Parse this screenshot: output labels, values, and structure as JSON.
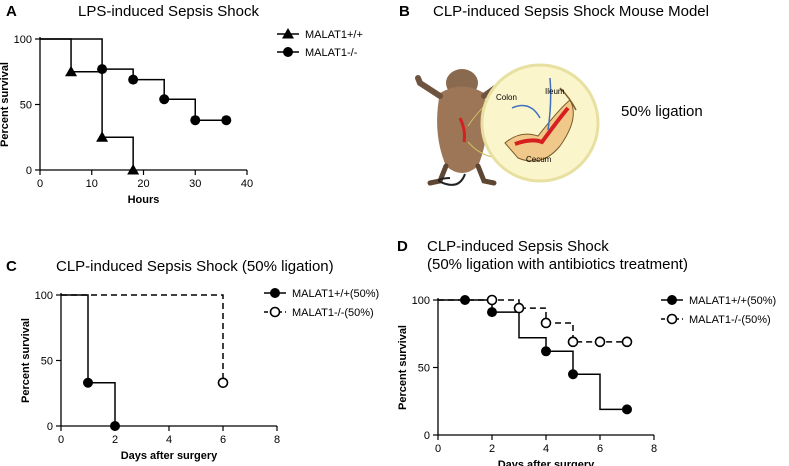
{
  "panels": {
    "A": {
      "letter": "A",
      "title": "LPS-induced Sepsis Shock"
    },
    "B": {
      "letter": "B",
      "title": "CLP-induced Sepsis Shock Mouse Model",
      "ligation": "50% ligation",
      "anatomy": {
        "ileum": "Ileum",
        "colon": "Colon",
        "cecum": "Cecum"
      }
    },
    "C": {
      "letter": "C",
      "title": "CLP-induced Sepsis Shock (50% ligation)"
    },
    "D": {
      "letter": "D",
      "title_line1": "CLP-induced Sepsis Shock",
      "title_line2": "(50% ligation with antibiotics treatment)"
    }
  },
  "chart_data": [
    {
      "id": "A",
      "type": "line",
      "title": "LPS-induced Sepsis Shock",
      "xlabel": "Hours",
      "ylabel": "Percent survival",
      "xlim": [
        0,
        40
      ],
      "ylim": [
        0,
        100
      ],
      "xticks": [
        0,
        10,
        20,
        30,
        40
      ],
      "yticks": [
        0,
        50,
        100
      ],
      "legend_position": "top-right",
      "series": [
        {
          "name": "MALAT1+/+",
          "marker": "triangle",
          "dashed": false,
          "steps": [
            [
              0,
              100
            ],
            [
              6,
              75
            ],
            [
              12,
              25
            ],
            [
              18,
              0
            ]
          ],
          "markers": [
            [
              6,
              75
            ],
            [
              12,
              25
            ],
            [
              18,
              0
            ]
          ]
        },
        {
          "name": "MALAT1-/-",
          "marker": "circle",
          "dashed": false,
          "steps": [
            [
              0,
              100
            ],
            [
              12,
              77
            ],
            [
              18,
              69
            ],
            [
              24,
              54
            ],
            [
              30,
              38
            ],
            [
              36,
              38
            ]
          ],
          "markers": [
            [
              12,
              77
            ],
            [
              18,
              69
            ],
            [
              24,
              54
            ],
            [
              30,
              38
            ],
            [
              36,
              38
            ]
          ]
        }
      ]
    },
    {
      "id": "C",
      "type": "line",
      "title": "CLP-induced Sepsis Shock (50% ligation)",
      "xlabel": "Days after surgery",
      "ylabel": "Percent survival",
      "xlim": [
        0,
        8
      ],
      "ylim": [
        0,
        100
      ],
      "xticks": [
        0,
        2,
        4,
        6,
        8
      ],
      "yticks": [
        0,
        50,
        100
      ],
      "legend_position": "top-right",
      "series": [
        {
          "name": "MALAT1+/+(50%)",
          "marker": "circle",
          "dashed": false,
          "steps": [
            [
              0,
              100
            ],
            [
              1,
              33
            ],
            [
              2,
              0
            ]
          ],
          "markers": [
            [
              1,
              33
            ],
            [
              2,
              0
            ]
          ]
        },
        {
          "name": "MALAT1-/-(50%)",
          "marker": "circle-open",
          "dashed": true,
          "steps": [
            [
              0,
              100
            ],
            [
              6,
              33
            ]
          ],
          "markers": [
            [
              6,
              33
            ]
          ]
        }
      ]
    },
    {
      "id": "D",
      "type": "line",
      "title": "CLP-induced Sepsis Shock (50% ligation with antibiotics treatment)",
      "xlabel": "Days after surgery",
      "ylabel": "Percent survival",
      "xlim": [
        0,
        8
      ],
      "ylim": [
        0,
        100
      ],
      "xticks": [
        0,
        2,
        4,
        6,
        8
      ],
      "yticks": [
        0,
        50,
        100
      ],
      "legend_position": "right",
      "series": [
        {
          "name": "MALAT1+/+(50%)",
          "marker": "circle",
          "dashed": false,
          "steps": [
            [
              0,
              100
            ],
            [
              2,
              91
            ],
            [
              3,
              72
            ],
            [
              4,
              62
            ],
            [
              5,
              45
            ],
            [
              6,
              19
            ],
            [
              7,
              19
            ]
          ],
          "markers": [
            [
              1,
              100
            ],
            [
              2,
              91
            ],
            [
              4,
              62
            ],
            [
              5,
              45
            ],
            [
              7,
              19
            ]
          ]
        },
        {
          "name": "MALAT1-/-(50%)",
          "marker": "circle-open",
          "dashed": true,
          "steps": [
            [
              0,
              100
            ],
            [
              3,
              94
            ],
            [
              4,
              83
            ],
            [
              5,
              69
            ],
            [
              7,
              69
            ]
          ],
          "markers": [
            [
              2,
              100
            ],
            [
              3,
              94
            ],
            [
              4,
              83
            ],
            [
              5,
              69
            ],
            [
              6,
              69
            ],
            [
              7,
              69
            ]
          ]
        }
      ]
    }
  ]
}
